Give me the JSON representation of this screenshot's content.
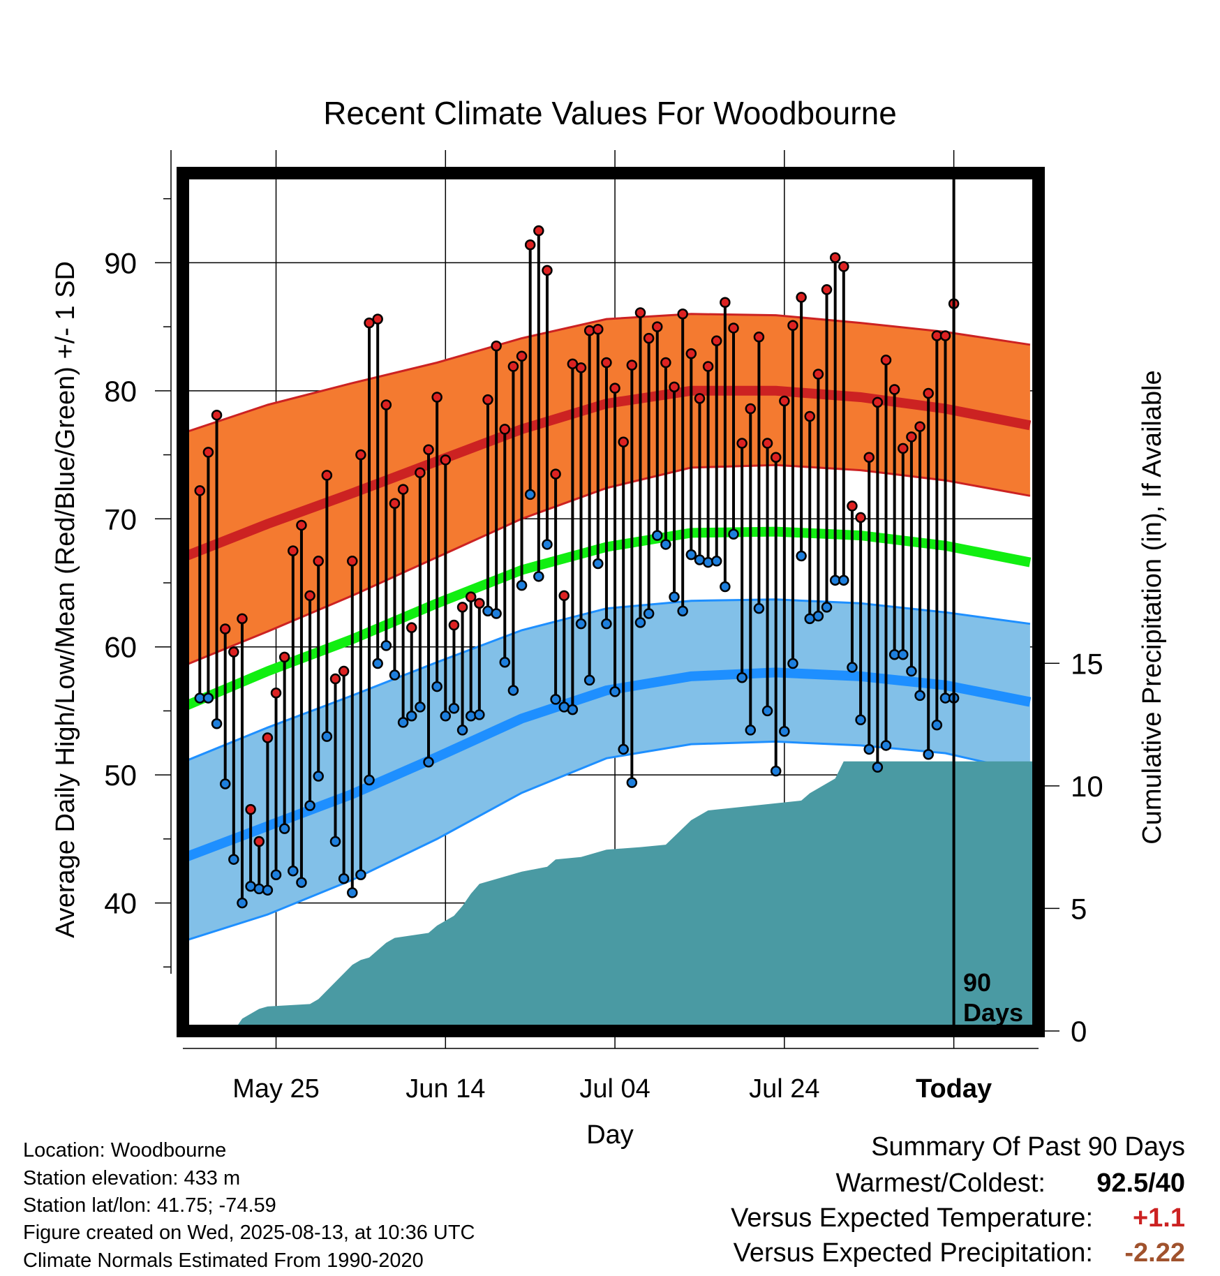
{
  "title": "Recent Climate Values For Woodbourne",
  "xlabel": "Day",
  "ylabel_left": "Average Daily High/Low/Mean (Red/Blue/Green) +/- 1 SD",
  "ylabel_right": "Cumulative Precipitation (in), If Available",
  "window_label_line1": "90",
  "window_label_line2": "Days",
  "info": {
    "location": "Location: Woodbourne",
    "elevation": "Station elevation: 433 m",
    "latlon": "Station lat/lon: 41.75; -74.59",
    "created": "Figure created on Wed, 2025-08-13, at 10:36 UTC",
    "normals": "Climate Normals Estimated From 1990-2020"
  },
  "summary": {
    "heading": "Summary Of Past 90 Days",
    "warmest_coldest_label": "Warmest/Coldest:",
    "warmest_coldest_value": "92.5/40",
    "temp_label": "Versus Expected Temperature:",
    "temp_value": "+1.1",
    "precip_label": "Versus Expected Precipitation:",
    "precip_value": "-2.22"
  },
  "colors": {
    "high_band": "#f47a30",
    "high_line": "#cc2222",
    "low_band": "#82c0e8",
    "low_line": "#1e8fff",
    "mean_line": "#11ee11",
    "precip": "#4a9aa3",
    "high_dot": "#dd2222",
    "low_dot": "#1e7fdd"
  },
  "chart_data": {
    "type": "line",
    "x_type": "day",
    "x_tick_labels": [
      "May 25",
      "Jun 14",
      "Jul 04",
      "Jul 24",
      "Today"
    ],
    "x_tick_days": [
      "2025-05-25",
      "2025-06-14",
      "2025-07-04",
      "2025-07-24",
      "2025-08-13"
    ],
    "xlim": [
      "2025-05-14",
      "2025-08-23"
    ],
    "today": "2025-08-13",
    "ylim_left": [
      30,
      97
    ],
    "yticks_left": [
      40,
      50,
      60,
      70,
      80,
      90
    ],
    "ylim_right": [
      0,
      35
    ],
    "yticks_right": [
      0,
      5,
      10,
      15
    ],
    "grid": true,
    "normals": {
      "days": [
        "2025-05-14",
        "2025-05-24",
        "2025-06-03",
        "2025-06-13",
        "2025-06-23",
        "2025-07-03",
        "2025-07-13",
        "2025-07-23",
        "2025-08-02",
        "2025-08-12",
        "2025-08-22"
      ],
      "high_mean": [
        67,
        69.6,
        72,
        74.5,
        77,
        79,
        80,
        80,
        79.5,
        78.6,
        77.3
      ],
      "high_upper": [
        76.7,
        78.9,
        80.6,
        82.2,
        84.1,
        85.6,
        86,
        85.9,
        85.3,
        84.6,
        83.6
      ],
      "high_lower": [
        58.5,
        61.2,
        64,
        67,
        70,
        72.4,
        74,
        74.2,
        73.8,
        73,
        71.8
      ],
      "mean": [
        55.3,
        58.1,
        60.6,
        63.4,
        66,
        67.8,
        68.9,
        69,
        68.7,
        67.9,
        66.6
      ],
      "low_mean": [
        43.5,
        46,
        48.5,
        51.4,
        54.4,
        56.6,
        57.7,
        58,
        57.7,
        57,
        55.7
      ],
      "low_upper": [
        51,
        53.7,
        56.2,
        58.8,
        61.3,
        63,
        63.6,
        63.7,
        63.4,
        62.7,
        61.8
      ],
      "low_lower": [
        37,
        39.1,
        41.8,
        45,
        48.6,
        51.3,
        52.4,
        52.6,
        52.3,
        51.7,
        50.2
      ]
    },
    "series": [
      {
        "name": "High",
        "values": [
          72.2,
          75.2,
          78.1,
          61.4,
          59.6,
          62.2,
          47.3,
          44.8,
          52.9,
          56.4,
          59.2,
          67.5,
          69.5,
          64,
          66.7,
          73.4,
          57.5,
          58.1,
          66.7,
          75,
          85.3,
          85.6,
          78.9,
          71.2,
          72.3,
          61.5,
          73.6,
          75.4,
          79.5,
          74.6,
          61.7,
          63.1,
          63.9,
          63.4,
          79.3,
          83.5,
          77,
          81.9,
          82.7,
          91.4,
          92.5,
          89.4,
          73.5,
          64,
          82.1,
          81.8,
          84.7,
          84.8,
          82.2,
          80.2,
          76,
          82,
          86.1,
          84.1,
          85,
          82.2,
          80.3,
          86,
          82.9,
          79.4,
          81.9,
          83.9,
          86.9,
          84.9,
          75.9,
          78.6,
          84.2,
          75.9,
          74.8,
          79.2,
          85.1,
          87.3,
          78,
          81.3,
          87.9,
          90.4,
          89.7,
          71,
          70.1,
          74.8,
          79.1,
          82.4,
          80.1,
          75.5,
          76.4,
          77.2,
          79.8,
          84.3,
          84.3,
          86.8
        ]
      },
      {
        "name": "Low",
        "values": [
          56,
          56,
          54,
          49.3,
          43.4,
          40,
          41.3,
          41.1,
          41,
          42.2,
          45.8,
          42.5,
          41.6,
          47.6,
          49.9,
          53,
          44.8,
          41.9,
          40.8,
          42.2,
          49.6,
          58.7,
          60.1,
          57.8,
          54.1,
          54.6,
          55.3,
          51,
          56.9,
          54.6,
          55.2,
          53.5,
          54.6,
          54.7,
          62.8,
          62.6,
          58.8,
          56.6,
          64.8,
          71.9,
          65.5,
          68,
          55.9,
          55.3,
          55.1,
          61.8,
          57.4,
          66.5,
          61.8,
          56.5,
          52,
          49.4,
          61.9,
          62.6,
          68.7,
          68,
          63.9,
          62.8,
          67.2,
          66.8,
          66.6,
          66.7,
          64.7,
          68.8,
          57.6,
          53.5,
          63,
          55,
          50.3,
          53.4,
          58.7,
          67.1,
          62.2,
          62.4,
          63.1,
          65.2,
          65.2,
          58.4,
          54.3,
          52,
          50.6,
          52.3,
          59.4,
          59.4,
          58.1,
          56.2,
          51.6,
          53.9,
          56,
          56
        ]
      },
      {
        "name": "Cumulative Precipitation",
        "unit": "in",
        "days": [
          "2025-05-21",
          "2025-05-22",
          "2025-05-23",
          "2025-05-24",
          "2025-05-29",
          "2025-05-30",
          "2025-06-03",
          "2025-06-04",
          "2025-06-05",
          "2025-06-06",
          "2025-06-07",
          "2025-06-08",
          "2025-06-12",
          "2025-06-13",
          "2025-06-15",
          "2025-06-16",
          "2025-06-17",
          "2025-06-18",
          "2025-06-21",
          "2025-06-23",
          "2025-06-26",
          "2025-06-27",
          "2025-06-30",
          "2025-07-01",
          "2025-07-03",
          "2025-07-07",
          "2025-07-10",
          "2025-07-13",
          "2025-07-14",
          "2025-07-15",
          "2025-07-26",
          "2025-07-27",
          "2025-07-30",
          "2025-07-31",
          "2025-08-23"
        ],
        "values": [
          0.5,
          0.7,
          0.9,
          1.0,
          1.1,
          1.3,
          2.7,
          2.9,
          3.0,
          3.3,
          3.6,
          3.8,
          4.0,
          4.3,
          4.7,
          5.1,
          5.6,
          6.0,
          6.3,
          6.5,
          6.7,
          7.0,
          7.1,
          7.2,
          7.4,
          7.5,
          7.6,
          8.6,
          8.8,
          9.0,
          9.4,
          9.7,
          10.3,
          11.0,
          11.0
        ]
      }
    ]
  }
}
